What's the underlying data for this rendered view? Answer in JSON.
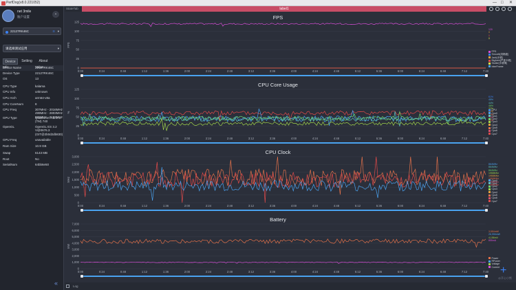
{
  "window": {
    "title": "PerfDog(v8.0.221052)",
    "controls": [
      "—",
      "□",
      "✕"
    ]
  },
  "sidebar": {
    "user": {
      "name": "net 3mile",
      "location": "账户设置"
    },
    "device": {
      "label": "22127RK46C",
      "conn_icon": "wifi-icon"
    },
    "app_select": {
      "label": "请选择测试应用"
    },
    "tabs": [
      "Device",
      "Setting",
      "About"
    ],
    "active_tab": "Device",
    "table_header": {
      "key": "Info",
      "value": "Value"
    },
    "rows": [
      {
        "k": "Device Name",
        "v": "22127RK46C"
      },
      {
        "k": "Device Type",
        "v": "22127RK46C"
      },
      {
        "k": "OS",
        "v": "13"
      },
      {
        "k": "CPU Type",
        "v": "kalama"
      },
      {
        "k": "CPU Info",
        "v": "unknown"
      },
      {
        "k": "CPU Arch",
        "v": "arm64-v8a"
      },
      {
        "k": "CPU CoreNum",
        "v": "8"
      },
      {
        "k": "CPU Freq",
        "v": "307MHz - 2016MHz\n499MHz - 2803MHz\n595MHz - 3187MHz"
      },
      {
        "k": "GPU Type",
        "v": "Qualcomm Adreno (TM) 740"
      },
      {
        "k": "OpenGL",
        "v": "OpenGL ES 3.2 V@0676.3 (GIT@2b0d2db830)"
      },
      {
        "k": "GPU Freq",
        "v": "unavailable"
      },
      {
        "k": "Ram Size",
        "v": "10.9 GB"
      },
      {
        "k": "Swap",
        "v": "6143 MB"
      },
      {
        "k": "Root",
        "v": "No"
      },
      {
        "k": "SerialNum",
        "v": "64bb6e50"
      }
    ]
  },
  "topbar": {
    "status": "StateTab",
    "label": "label1"
  },
  "bottombar": {
    "log": "Log"
  },
  "watermark": "@开心小熊",
  "time_ticks": [
    "0:00",
    "0:24",
    "0:48",
    "1:12",
    "1:36",
    "2:00",
    "2:24",
    "2:48",
    "3:12",
    "3:36",
    "4:00",
    "4:24",
    "4:48",
    "5:12",
    "5:36",
    "6:00",
    "6:24",
    "6:48",
    "7:12",
    "7:40"
  ],
  "charts": [
    {
      "title": "FPS",
      "ylabel": "FPS",
      "yticks": [
        "125",
        "100",
        "75",
        "50",
        "25",
        "0"
      ],
      "legend": [
        {
          "name": "FPS",
          "color": "#d84fd8"
        },
        {
          "name": "Smooth[流畅度]",
          "color": "#3b82f6"
        },
        {
          "name": "Jank[卡顿]",
          "color": "#e8a33d"
        },
        {
          "name": "BigJank[严重卡顿]",
          "color": "#e24a4a"
        },
        {
          "name": "Stutter[卡顿率]",
          "color": "#e8e84a"
        },
        {
          "name": "InterFrame",
          "color": "#4aa3f0"
        }
      ],
      "side_values": [
        {
          "text": "120",
          "color": "#d84fd8"
        },
        {
          "text": "0",
          "color": "#e8a33d"
        },
        {
          "text": "0",
          "color": "#e24a4a"
        },
        {
          "text": "0",
          "color": "#e8e84a"
        }
      ]
    },
    {
      "title": "CPU Core Usage",
      "ylabel": "%",
      "yticks": [
        "125",
        "100",
        "75",
        "50",
        "25",
        "0"
      ],
      "legend": [
        {
          "name": "CPU",
          "color": "#3b82f6"
        },
        {
          "name": "Cpu0",
          "color": "#4aa3f0"
        },
        {
          "name": "Cpu1",
          "color": "#5bc0c0"
        },
        {
          "name": "Cpu2",
          "color": "#6bd36b"
        },
        {
          "name": "Cpu3",
          "color": "#a3d84a"
        },
        {
          "name": "Cpu4",
          "color": "#e8a33d"
        },
        {
          "name": "Cpu5",
          "color": "#e2714a"
        },
        {
          "name": "Cpu6",
          "color": "#d84f6d"
        },
        {
          "name": "Cpu7",
          "color": "#e24a4a"
        }
      ],
      "side_values": [
        {
          "text": "61%",
          "color": "#3b82f6"
        },
        {
          "text": "45%",
          "color": "#4aa3f0"
        },
        {
          "text": "44%",
          "color": "#5bc0c0"
        },
        {
          "text": "46%",
          "color": "#6bd36b"
        },
        {
          "text": "32%",
          "color": "#a3d84a"
        },
        {
          "text": "61%",
          "color": "#e8a33d"
        },
        {
          "text": "43%",
          "color": "#e2714a"
        },
        {
          "text": "38%",
          "color": "#d84f6d"
        },
        {
          "text": "26%",
          "color": "#e24a4a"
        }
      ]
    },
    {
      "title": "CPU Clock",
      "ylabel": "MHz",
      "yticks": [
        "3,000",
        "2,500",
        "2,000",
        "1,500",
        "1,000",
        "500",
        "0"
      ],
      "legend": [
        {
          "name": "Cpu0",
          "color": "#4aa3f0"
        },
        {
          "name": "Cpu1",
          "color": "#5bc0c0"
        },
        {
          "name": "Cpu2",
          "color": "#6bd36b"
        },
        {
          "name": "Cpu3",
          "color": "#a3d84a"
        },
        {
          "name": "Cpu4",
          "color": "#e8a33d"
        },
        {
          "name": "Cpu5",
          "color": "#e2714a"
        },
        {
          "name": "Cpu6",
          "color": "#d84f6d"
        },
        {
          "name": "Cpu7",
          "color": "#e24a4a"
        }
      ],
      "side_values": [
        {
          "text": "864MHz",
          "color": "#4aa3f0"
        },
        {
          "text": "864MHz",
          "color": "#5bc0c0"
        },
        {
          "text": "864MHz",
          "color": "#6bd36b"
        },
        {
          "text": "1958MHz",
          "color": "#a3d84a"
        },
        {
          "text": "1958MHz",
          "color": "#e8a33d"
        },
        {
          "text": "1958MHz",
          "color": "#e2714a"
        },
        {
          "text": "1958MHz",
          "color": "#d84f6d"
        },
        {
          "text": "1958MHz",
          "color": "#e24a4a"
        }
      ]
    },
    {
      "title": "Battery",
      "ylabel": "mW",
      "yticks": [
        "7,000",
        "6,000",
        "5,000",
        "4,000",
        "3,000",
        "2,000",
        "1,000",
        "0"
      ],
      "legend": [
        {
          "name": "Power",
          "color": "#e2714a"
        },
        {
          "name": "RPower",
          "color": "#4aa3f0"
        },
        {
          "name": "Voltage",
          "color": "#a3d84a"
        },
        {
          "name": "Current",
          "color": "#d84fd8"
        }
      ],
      "side_values": [
        {
          "text": "3,554mW",
          "color": "#e2714a"
        },
        {
          "text": "26,996mW",
          "color": "#4aa3f0"
        },
        {
          "text": "4,156mV",
          "color": "#a3d84a"
        },
        {
          "text": "855mA",
          "color": "#d84fd8"
        }
      ]
    }
  ],
  "chart_data": [
    {
      "type": "line",
      "title": "FPS",
      "ylabel": "FPS",
      "ylim": [
        0,
        125
      ],
      "x": [
        "0:00",
        "7:40"
      ],
      "series": [
        {
          "name": "FPS",
          "level": 120,
          "noise": 2,
          "color": "#d84fd8"
        },
        {
          "name": "Jank[卡顿]",
          "level": 0,
          "noise": 0,
          "color": "#e8a33d"
        },
        {
          "name": "BigJank[严重卡顿]",
          "level": 0,
          "noise": 0,
          "color": "#e24a4a"
        }
      ]
    },
    {
      "type": "line",
      "title": "CPU Core Usage",
      "ylabel": "%",
      "ylim": [
        0,
        125
      ],
      "series": [
        {
          "name": "CPU",
          "level": 61,
          "noise": 6,
          "color": "#e24a4a"
        },
        {
          "name": "Cpu0",
          "level": 45,
          "noise": 8,
          "color": "#4aa3f0"
        },
        {
          "name": "Cpu1",
          "level": 44,
          "noise": 6,
          "color": "#5bc0c0"
        },
        {
          "name": "Cpu2",
          "level": 46,
          "noise": 6,
          "color": "#6bd36b"
        },
        {
          "name": "Cpu3",
          "level": 32,
          "noise": 5,
          "color": "#a3d84a"
        }
      ]
    },
    {
      "type": "line",
      "title": "CPU Clock",
      "ylabel": "MHz",
      "ylim": [
        0,
        3000
      ],
      "series": [
        {
          "name": "Cpu4",
          "level": 1650,
          "noise": 550,
          "color": "#e2714a"
        },
        {
          "name": "Cpu7",
          "level": 1500,
          "noise": 500,
          "color": "#e24a4a"
        },
        {
          "name": "Cpu0",
          "level": 1100,
          "noise": 350,
          "color": "#4aa3f0"
        }
      ]
    },
    {
      "type": "line",
      "title": "Battery",
      "ylabel": "mW",
      "ylim": [
        0,
        7000
      ],
      "series": [
        {
          "name": "Power",
          "level": 4300,
          "noise": 350,
          "color": "#e2714a"
        },
        {
          "name": "Current",
          "level": 1000,
          "noise": 60,
          "color": "#d84fd8"
        }
      ]
    }
  ]
}
